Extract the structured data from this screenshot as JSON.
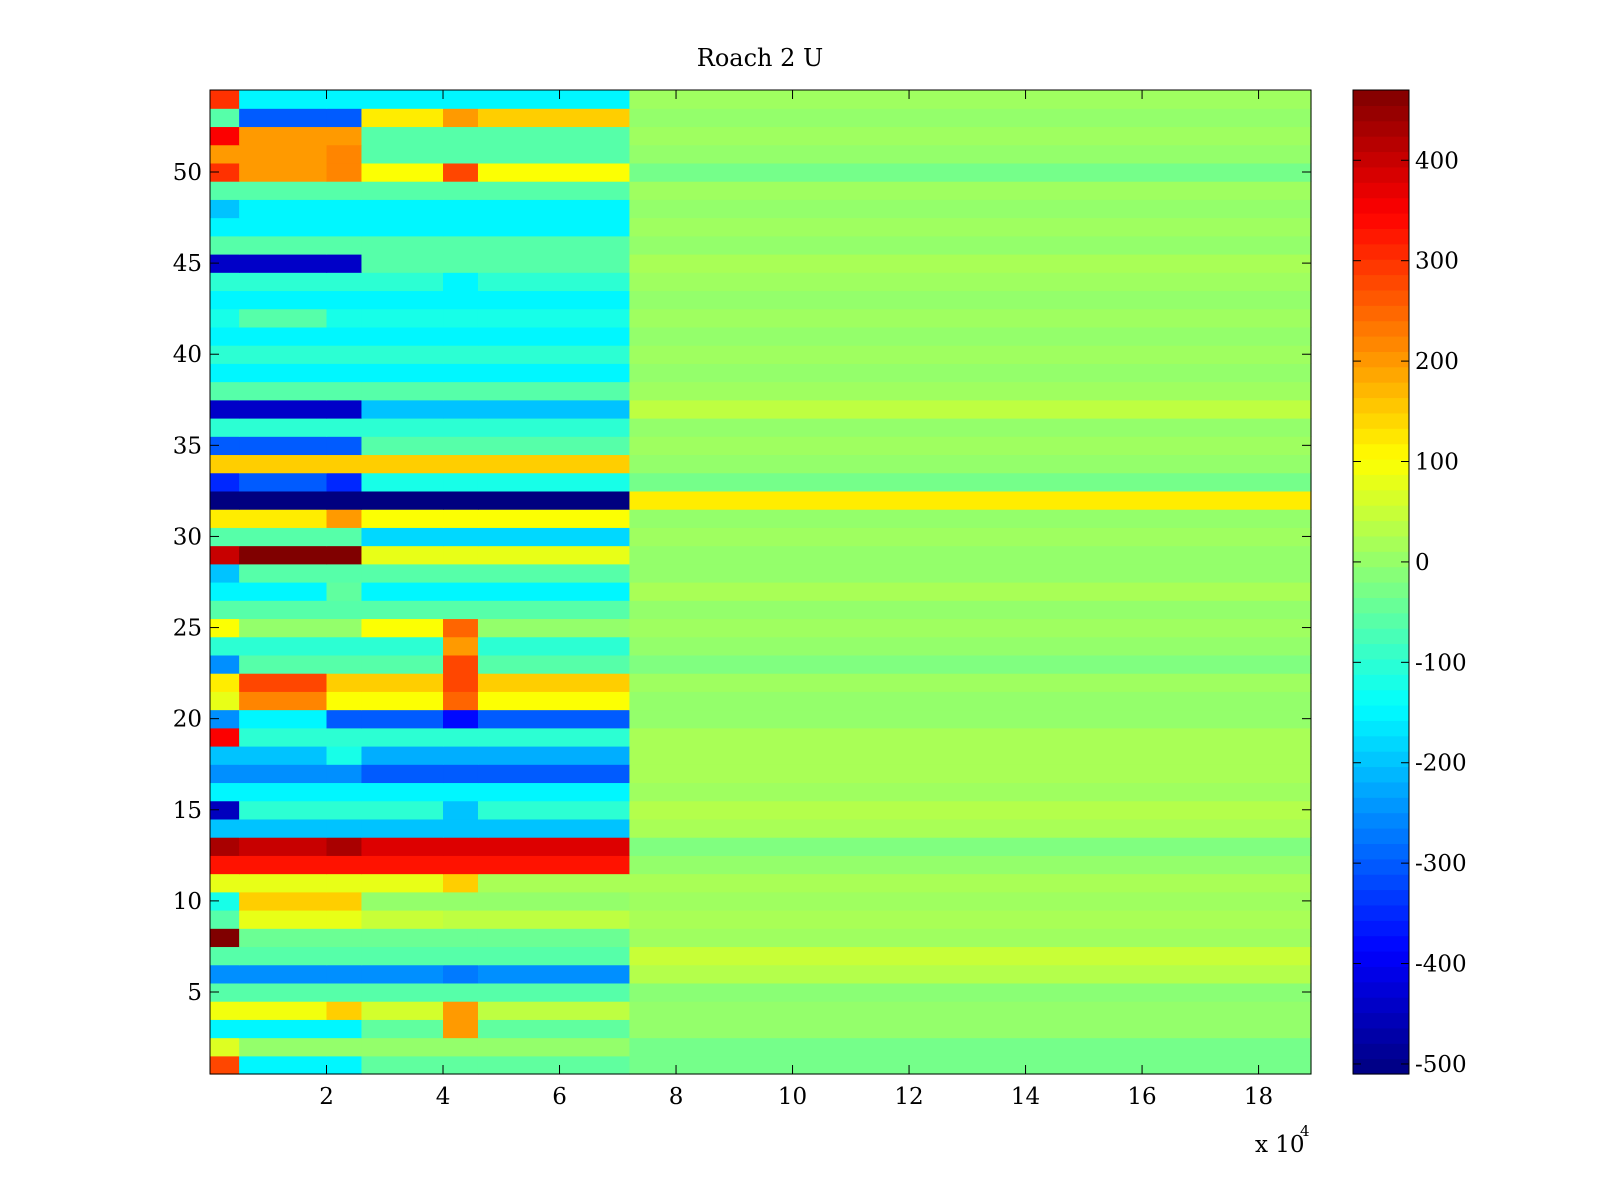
{
  "chart_data": {
    "type": "heatmap",
    "title": "Roach 2 U",
    "xlabel": "",
    "ylabel": "",
    "x_exponent_label": "x 10",
    "x_exponent_power": "4",
    "xlim": [
      0,
      18.9
    ],
    "ylim": [
      0.5,
      54.5
    ],
    "x_ticks": [
      {
        "value": 2,
        "label": "2"
      },
      {
        "value": 4,
        "label": "4"
      },
      {
        "value": 6,
        "label": "6"
      },
      {
        "value": 8,
        "label": "8"
      },
      {
        "value": 10,
        "label": "10"
      },
      {
        "value": 12,
        "label": "12"
      },
      {
        "value": 14,
        "label": "14"
      },
      {
        "value": 16,
        "label": "16"
      },
      {
        "value": 18,
        "label": "18"
      }
    ],
    "y_ticks": [
      {
        "value": 5,
        "label": "5"
      },
      {
        "value": 10,
        "label": "10"
      },
      {
        "value": 15,
        "label": "15"
      },
      {
        "value": 20,
        "label": "20"
      },
      {
        "value": 25,
        "label": "25"
      },
      {
        "value": 30,
        "label": "30"
      },
      {
        "value": 35,
        "label": "35"
      },
      {
        "value": 40,
        "label": "40"
      },
      {
        "value": 45,
        "label": "45"
      },
      {
        "value": 50,
        "label": "50"
      }
    ],
    "colorbar": {
      "colormap": "jet",
      "range": [
        -510,
        470
      ],
      "ticks": [
        {
          "value": 400,
          "label": "400"
        },
        {
          "value": 300,
          "label": "300"
        },
        {
          "value": 200,
          "label": "200"
        },
        {
          "value": 100,
          "label": "100"
        },
        {
          "value": 0,
          "label": "0"
        },
        {
          "value": -100,
          "label": "-100"
        },
        {
          "value": -200,
          "label": "-200"
        },
        {
          "value": -300,
          "label": "-300"
        },
        {
          "value": -400,
          "label": "-400"
        },
        {
          "value": -500,
          "label": "-500"
        }
      ]
    },
    "cell_x_edges": [
      0,
      0.5,
      2.0,
      2.6,
      4.0,
      4.6,
      7.2,
      18.9
    ],
    "rows": [
      {
        "row": 1,
        "values": [
          280,
          -150,
          -150,
          -50,
          -50,
          -50,
          -30
        ]
      },
      {
        "row": 2,
        "values": [
          70,
          0,
          0,
          0,
          0,
          0,
          -30
        ]
      },
      {
        "row": 3,
        "values": [
          -150,
          -150,
          -150,
          -50,
          200,
          -50,
          0
        ]
      },
      {
        "row": 4,
        "values": [
          90,
          90,
          150,
          60,
          200,
          40,
          0
        ]
      },
      {
        "row": 5,
        "values": [
          -60,
          -60,
          -60,
          -60,
          -60,
          -60,
          -10
        ]
      },
      {
        "row": 6,
        "values": [
          -250,
          -250,
          -250,
          -250,
          -270,
          -250,
          30
        ]
      },
      {
        "row": 7,
        "values": [
          -60,
          -60,
          -60,
          -60,
          -60,
          -60,
          50
        ]
      },
      {
        "row": 8,
        "values": [
          470,
          -40,
          -40,
          -40,
          -40,
          -40,
          10
        ]
      },
      {
        "row": 9,
        "values": [
          -60,
          80,
          80,
          50,
          40,
          40,
          20
        ]
      },
      {
        "row": 10,
        "values": [
          -120,
          150,
          150,
          0,
          0,
          0,
          10
        ]
      },
      {
        "row": 11,
        "values": [
          80,
          80,
          80,
          80,
          150,
          20,
          20
        ]
      },
      {
        "row": 12,
        "values": [
          330,
          330,
          330,
          330,
          330,
          330,
          0
        ]
      },
      {
        "row": 13,
        "values": [
          430,
          400,
          430,
          380,
          380,
          380,
          -20
        ]
      },
      {
        "row": 14,
        "values": [
          -200,
          -200,
          -200,
          -200,
          -200,
          -200,
          20
        ]
      },
      {
        "row": 15,
        "values": [
          -450,
          -100,
          -100,
          -100,
          -200,
          -100,
          30
        ]
      },
      {
        "row": 16,
        "values": [
          -150,
          -150,
          -150,
          -150,
          -150,
          -150,
          10
        ]
      },
      {
        "row": 17,
        "values": [
          -250,
          -250,
          -250,
          -300,
          -300,
          -300,
          20
        ]
      },
      {
        "row": 18,
        "values": [
          -200,
          -200,
          -120,
          -220,
          -220,
          -220,
          20
        ]
      },
      {
        "row": 19,
        "values": [
          350,
          -100,
          -100,
          -100,
          -100,
          -100,
          20
        ]
      },
      {
        "row": 20,
        "values": [
          -250,
          -150,
          -300,
          -300,
          -380,
          -300,
          0
        ]
      },
      {
        "row": 21,
        "values": [
          80,
          220,
          100,
          100,
          250,
          100,
          0
        ]
      },
      {
        "row": 22,
        "values": [
          120,
          280,
          150,
          150,
          280,
          150,
          10
        ]
      },
      {
        "row": 23,
        "values": [
          -250,
          -60,
          -60,
          -60,
          280,
          -60,
          -20
        ]
      },
      {
        "row": 24,
        "values": [
          -100,
          -100,
          -100,
          -100,
          200,
          -100,
          0
        ]
      },
      {
        "row": 25,
        "values": [
          100,
          0,
          0,
          100,
          250,
          0,
          10
        ]
      },
      {
        "row": 26,
        "values": [
          -60,
          -60,
          -60,
          -60,
          -60,
          -60,
          0
        ]
      },
      {
        "row": 27,
        "values": [
          -150,
          -150,
          -50,
          -150,
          -150,
          -150,
          20
        ]
      },
      {
        "row": 28,
        "values": [
          -200,
          -60,
          -60,
          -60,
          -60,
          -60,
          0
        ]
      },
      {
        "row": 29,
        "values": [
          400,
          470,
          470,
          80,
          80,
          80,
          0
        ]
      },
      {
        "row": 30,
        "values": [
          -60,
          -60,
          -60,
          -180,
          -180,
          -180,
          10
        ]
      },
      {
        "row": 31,
        "values": [
          120,
          120,
          200,
          100,
          100,
          100,
          0
        ]
      },
      {
        "row": 32,
        "values": [
          -510,
          -510,
          -510,
          -510,
          -510,
          -510,
          120
        ]
      },
      {
        "row": 33,
        "values": [
          -350,
          -300,
          -350,
          -120,
          -120,
          -120,
          -30
        ]
      },
      {
        "row": 34,
        "values": [
          150,
          150,
          150,
          150,
          150,
          150,
          0
        ]
      },
      {
        "row": 35,
        "values": [
          -300,
          -300,
          -300,
          -60,
          -60,
          -60,
          10
        ]
      },
      {
        "row": 36,
        "values": [
          -100,
          -100,
          -100,
          -100,
          -100,
          -100,
          0
        ]
      },
      {
        "row": 37,
        "values": [
          -440,
          -440,
          -440,
          -200,
          -200,
          -200,
          40
        ]
      },
      {
        "row": 38,
        "values": [
          -60,
          -60,
          -60,
          -60,
          -60,
          -60,
          10
        ]
      },
      {
        "row": 39,
        "values": [
          -150,
          -150,
          -150,
          -150,
          -150,
          -150,
          0
        ]
      },
      {
        "row": 40,
        "values": [
          -100,
          -100,
          -100,
          -100,
          -100,
          -100,
          10
        ]
      },
      {
        "row": 41,
        "values": [
          -150,
          -150,
          -150,
          -150,
          -150,
          -150,
          0
        ]
      },
      {
        "row": 42,
        "values": [
          -120,
          -60,
          -120,
          -120,
          -120,
          -120,
          10
        ]
      },
      {
        "row": 43,
        "values": [
          -150,
          -150,
          -150,
          -150,
          -150,
          -150,
          0
        ]
      },
      {
        "row": 44,
        "values": [
          -100,
          -100,
          -100,
          -100,
          -150,
          -100,
          10
        ]
      },
      {
        "row": 45,
        "values": [
          -440,
          -440,
          -440,
          -60,
          -60,
          -60,
          20
        ]
      },
      {
        "row": 46,
        "values": [
          -60,
          -60,
          -60,
          -60,
          -60,
          -60,
          0
        ]
      },
      {
        "row": 47,
        "values": [
          -150,
          -150,
          -150,
          -150,
          -150,
          -150,
          10
        ]
      },
      {
        "row": 48,
        "values": [
          -200,
          -150,
          -150,
          -150,
          -150,
          -150,
          0
        ]
      },
      {
        "row": 49,
        "values": [
          -60,
          -60,
          -60,
          -60,
          -60,
          -60,
          10
        ]
      },
      {
        "row": 50,
        "values": [
          300,
          200,
          220,
          100,
          280,
          100,
          -30
        ]
      },
      {
        "row": 51,
        "values": [
          200,
          200,
          220,
          -60,
          -60,
          -60,
          0
        ]
      },
      {
        "row": 52,
        "values": [
          350,
          200,
          200,
          -60,
          -60,
          -60,
          10
        ]
      },
      {
        "row": 53,
        "values": [
          -60,
          -300,
          -300,
          120,
          200,
          150,
          0
        ]
      },
      {
        "row": 54,
        "values": [
          300,
          -150,
          -150,
          -150,
          -150,
          -150,
          10
        ]
      }
    ]
  }
}
